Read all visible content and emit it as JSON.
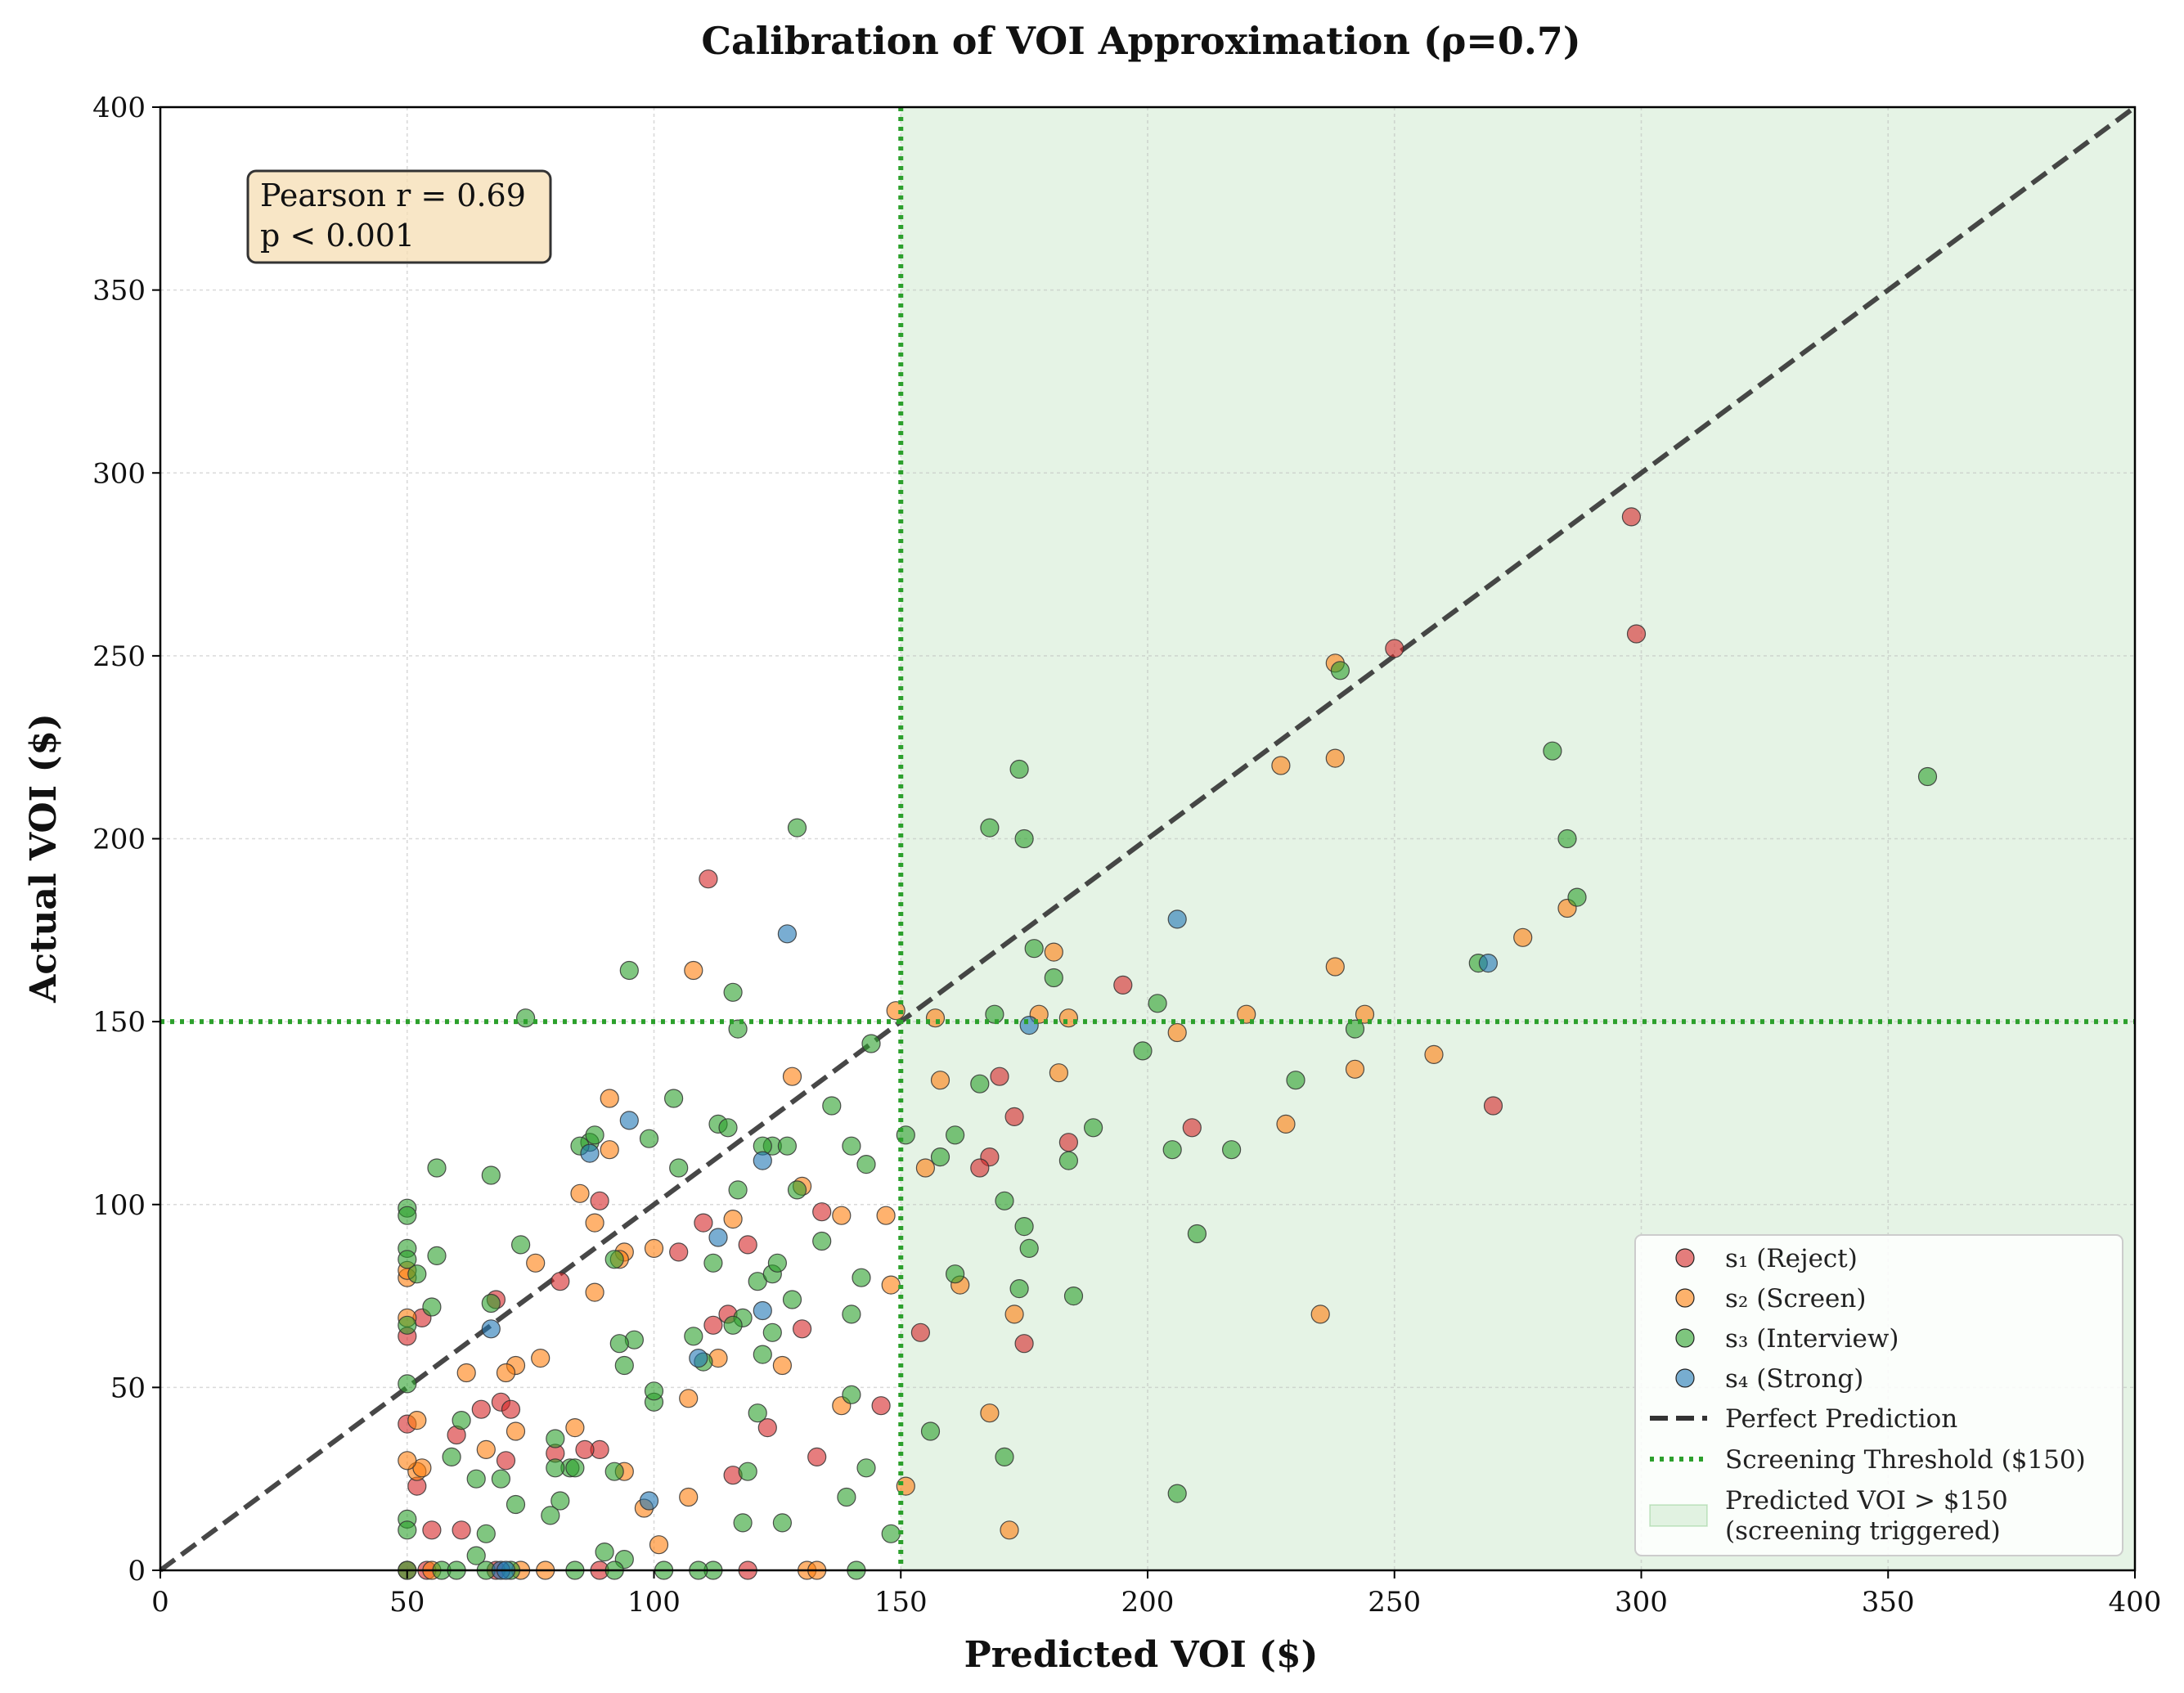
{
  "chart_data": {
    "type": "scatter",
    "title": "Calibration of VOI Approximation (ρ=0.7)",
    "xlabel": "Predicted VOI ($)",
    "ylabel": "Actual VOI ($)",
    "xlim": [
      0,
      400
    ],
    "ylim": [
      0,
      400
    ],
    "xticks": [
      "0",
      "50",
      "100",
      "150",
      "200",
      "250",
      "300",
      "350",
      "400"
    ],
    "yticks": [
      "0",
      "50",
      "100",
      "150",
      "200",
      "250",
      "300",
      "350",
      "400"
    ],
    "grid": true,
    "legend_position": "lower-right",
    "stats_box": {
      "line1": "Pearson r = 0.69",
      "line2": "p < 0.001"
    },
    "threshold": {
      "x": 150,
      "y": 150,
      "label": "Screening Threshold ($150)",
      "color": "#2ca02c"
    },
    "shaded_region": {
      "x_from": 150,
      "x_to": 400,
      "label_line1": "Predicted VOI > $150",
      "label_line2": "(screening triggered)",
      "color": "#2ca02c"
    },
    "reference_line": {
      "label": "Perfect Prediction",
      "from": [
        0,
        0
      ],
      "to": [
        400,
        400
      ],
      "color": "#333333"
    },
    "series": [
      {
        "name": "s₁ (Reject)",
        "color": "#d62728",
        "points": [
          [
            298,
            288
          ],
          [
            299,
            256
          ],
          [
            250,
            252
          ],
          [
            195,
            160
          ],
          [
            209,
            121
          ],
          [
            184,
            117
          ],
          [
            173,
            124
          ],
          [
            170,
            135
          ],
          [
            168,
            113
          ],
          [
            166,
            110
          ],
          [
            175,
            62
          ],
          [
            270,
            127
          ],
          [
            111,
            189
          ],
          [
            110,
            95
          ],
          [
            105,
            87
          ],
          [
            112,
            67
          ],
          [
            115,
            70
          ],
          [
            119,
            89
          ],
          [
            123,
            39
          ],
          [
            116,
            26
          ],
          [
            119,
            0
          ],
          [
            130,
            66
          ],
          [
            134,
            98
          ],
          [
            133,
            31
          ],
          [
            146,
            45
          ],
          [
            154,
            65
          ],
          [
            89,
            101
          ],
          [
            89,
            33
          ],
          [
            86,
            33
          ],
          [
            81,
            79
          ],
          [
            80,
            32
          ],
          [
            69,
            46
          ],
          [
            70,
            30
          ],
          [
            71,
            44
          ],
          [
            68,
            74
          ],
          [
            65,
            44
          ],
          [
            61,
            11
          ],
          [
            60,
            37
          ],
          [
            55,
            11
          ],
          [
            52,
            23
          ],
          [
            53,
            69
          ],
          [
            50,
            40
          ],
          [
            50,
            64
          ],
          [
            50,
            0
          ],
          [
            89,
            0
          ],
          [
            54,
            0
          ],
          [
            68,
            0
          ]
        ]
      },
      {
        "name": "s₂ (Screen)",
        "color": "#ff7f0e",
        "points": [
          [
            238,
            248
          ],
          [
            227,
            220
          ],
          [
            238,
            222
          ],
          [
            285,
            181
          ],
          [
            276,
            173
          ],
          [
            238,
            165
          ],
          [
            181,
            169
          ],
          [
            178,
            152
          ],
          [
            184,
            151
          ],
          [
            220,
            152
          ],
          [
            244,
            152
          ],
          [
            206,
            147
          ],
          [
            258,
            141
          ],
          [
            242,
            137
          ],
          [
            182,
            136
          ],
          [
            228,
            122
          ],
          [
            158,
            134
          ],
          [
            157,
            151
          ],
          [
            155,
            110
          ],
          [
            162,
            78
          ],
          [
            173,
            70
          ],
          [
            235,
            70
          ],
          [
            168,
            43
          ],
          [
            172,
            11
          ],
          [
            151,
            23
          ],
          [
            149,
            153
          ],
          [
            108,
            164
          ],
          [
            128,
            135
          ],
          [
            138,
            97
          ],
          [
            147,
            97
          ],
          [
            148,
            78
          ],
          [
            130,
            105
          ],
          [
            126,
            56
          ],
          [
            116,
            96
          ],
          [
            113,
            58
          ],
          [
            107,
            47
          ],
          [
            107,
            20
          ],
          [
            101,
            7
          ],
          [
            98,
            17
          ],
          [
            100,
            88
          ],
          [
            94,
            87
          ],
          [
            93,
            85
          ],
          [
            91,
            115
          ],
          [
            91,
            129
          ],
          [
            88,
            95
          ],
          [
            88,
            76
          ],
          [
            85,
            103
          ],
          [
            84,
            39
          ],
          [
            76,
            84
          ],
          [
            77,
            58
          ],
          [
            72,
            56
          ],
          [
            72,
            38
          ],
          [
            70,
            54
          ],
          [
            66,
            33
          ],
          [
            62,
            54
          ],
          [
            52,
            41
          ],
          [
            52,
            27
          ],
          [
            53,
            28
          ],
          [
            50,
            80
          ],
          [
            50,
            82
          ],
          [
            50,
            69
          ],
          [
            50,
            30
          ],
          [
            94,
            27
          ],
          [
            78,
            0
          ],
          [
            73,
            0
          ],
          [
            55,
            0
          ],
          [
            131,
            0
          ],
          [
            133,
            0
          ],
          [
            138,
            45
          ]
        ]
      },
      {
        "name": "s₃ (Interview)",
        "color": "#2ca02c",
        "points": [
          [
            358,
            217
          ],
          [
            282,
            224
          ],
          [
            285,
            200
          ],
          [
            287,
            184
          ],
          [
            267,
            166
          ],
          [
            239,
            246
          ],
          [
            242,
            148
          ],
          [
            230,
            134
          ],
          [
            217,
            115
          ],
          [
            210,
            92
          ],
          [
            206,
            21
          ],
          [
            202,
            155
          ],
          [
            199,
            142
          ],
          [
            205,
            115
          ],
          [
            189,
            121
          ],
          [
            185,
            75
          ],
          [
            184,
            112
          ],
          [
            181,
            162
          ],
          [
            177,
            170
          ],
          [
            175,
            200
          ],
          [
            174,
            219
          ],
          [
            168,
            203
          ],
          [
            169,
            152
          ],
          [
            171,
            101
          ],
          [
            175,
            94
          ],
          [
            176,
            88
          ],
          [
            174,
            77
          ],
          [
            171,
            31
          ],
          [
            166,
            133
          ],
          [
            161,
            119
          ],
          [
            158,
            113
          ],
          [
            161,
            81
          ],
          [
            156,
            38
          ],
          [
            151,
            119
          ],
          [
            148,
            10
          ],
          [
            129,
            203
          ],
          [
            117,
            148
          ],
          [
            116,
            158
          ],
          [
            95,
            164
          ],
          [
            74,
            151
          ],
          [
            104,
            129
          ],
          [
            113,
            122
          ],
          [
            115,
            121
          ],
          [
            124,
            116
          ],
          [
            127,
            116
          ],
          [
            122,
            116
          ],
          [
            105,
            110
          ],
          [
            99,
            118
          ],
          [
            87,
            117
          ],
          [
            88,
            119
          ],
          [
            85,
            116
          ],
          [
            129,
            104
          ],
          [
            134,
            90
          ],
          [
            117,
            104
          ],
          [
            121,
            79
          ],
          [
            124,
            81
          ],
          [
            125,
            84
          ],
          [
            128,
            74
          ],
          [
            118,
            69
          ],
          [
            116,
            67
          ],
          [
            121,
            43
          ],
          [
            122,
            59
          ],
          [
            124,
            65
          ],
          [
            119,
            27
          ],
          [
            118,
            13
          ],
          [
            126,
            13
          ],
          [
            136,
            127
          ],
          [
            140,
            116
          ],
          [
            142,
            80
          ],
          [
            140,
            70
          ],
          [
            143,
            111
          ],
          [
            144,
            144
          ],
          [
            140,
            48
          ],
          [
            139,
            20
          ],
          [
            143,
            28
          ],
          [
            141,
            0
          ],
          [
            112,
            84
          ],
          [
            110,
            57
          ],
          [
            108,
            64
          ],
          [
            100,
            46
          ],
          [
            100,
            49
          ],
          [
            96,
            63
          ],
          [
            93,
            62
          ],
          [
            94,
            56
          ],
          [
            92,
            85
          ],
          [
            92,
            27
          ],
          [
            90,
            5
          ],
          [
            94,
            3
          ],
          [
            102,
            0
          ],
          [
            112,
            0
          ],
          [
            109,
            0
          ],
          [
            92,
            0
          ],
          [
            84,
            0
          ],
          [
            67,
            108
          ],
          [
            73,
            89
          ],
          [
            67,
            73
          ],
          [
            61,
            41
          ],
          [
            59,
            31
          ],
          [
            64,
            25
          ],
          [
            69,
            25
          ],
          [
            72,
            18
          ],
          [
            66,
            10
          ],
          [
            64,
            4
          ],
          [
            66,
            0
          ],
          [
            71,
            0
          ],
          [
            80,
            36
          ],
          [
            81,
            19
          ],
          [
            79,
            15
          ],
          [
            83,
            28
          ],
          [
            84,
            28
          ],
          [
            80,
            28
          ],
          [
            56,
            110
          ],
          [
            56,
            86
          ],
          [
            55,
            72
          ],
          [
            52,
            81
          ],
          [
            50,
            99
          ],
          [
            50,
            97
          ],
          [
            50,
            88
          ],
          [
            50,
            85
          ],
          [
            50,
            67
          ],
          [
            50,
            51
          ],
          [
            50,
            14
          ],
          [
            50,
            11
          ],
          [
            50,
            0
          ],
          [
            57,
            0
          ],
          [
            60,
            0
          ]
        ]
      },
      {
        "name": "s₄ (Strong)",
        "color": "#1f77b4",
        "points": [
          [
            206,
            178
          ],
          [
            269,
            166
          ],
          [
            176,
            149
          ],
          [
            127,
            174
          ],
          [
            95,
            123
          ],
          [
            87,
            114
          ],
          [
            122,
            112
          ],
          [
            113,
            91
          ],
          [
            109,
            58
          ],
          [
            122,
            71
          ],
          [
            67,
            66
          ],
          [
            99,
            19
          ],
          [
            69,
            0
          ],
          [
            70,
            0
          ]
        ]
      }
    ]
  }
}
